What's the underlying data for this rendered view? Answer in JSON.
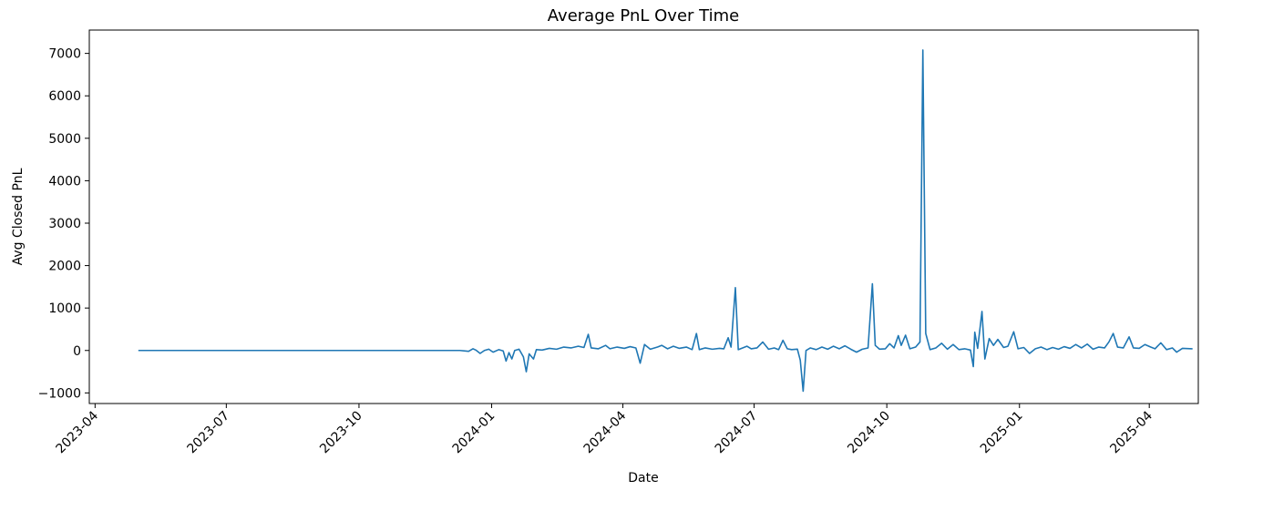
{
  "chart_data": {
    "type": "line",
    "title": "Average PnL Over Time",
    "xlabel": "Date",
    "ylabel": "Avg Closed PnL",
    "xlim": [
      "2023-03-28",
      "2025-05-05"
    ],
    "ylim": [
      -1250,
      7550
    ],
    "grid": false,
    "x_ticks": [
      "2023-04",
      "2023-07",
      "2023-10",
      "2024-01",
      "2024-04",
      "2024-07",
      "2024-10",
      "2025-01",
      "2025-04"
    ],
    "y_ticks": [
      -1000,
      0,
      1000,
      2000,
      3000,
      4000,
      5000,
      6000,
      7000
    ],
    "series": [
      {
        "color": "#1f77b4",
        "points": [
          [
            "2023-05-01",
            0
          ],
          [
            "2023-07-01",
            0
          ],
          [
            "2023-09-01",
            0
          ],
          [
            "2023-11-01",
            0
          ],
          [
            "2023-12-10",
            0
          ],
          [
            "2023-12-16",
            -20
          ],
          [
            "2023-12-19",
            40
          ],
          [
            "2023-12-21",
            10
          ],
          [
            "2023-12-24",
            -70
          ],
          [
            "2023-12-27",
            0
          ],
          [
            "2023-12-30",
            30
          ],
          [
            "2024-01-02",
            -40
          ],
          [
            "2024-01-06",
            20
          ],
          [
            "2024-01-09",
            -10
          ],
          [
            "2024-01-11",
            -250
          ],
          [
            "2024-01-13",
            -50
          ],
          [
            "2024-01-15",
            -200
          ],
          [
            "2024-01-17",
            0
          ],
          [
            "2024-01-20",
            30
          ],
          [
            "2024-01-23",
            -150
          ],
          [
            "2024-01-25",
            -500
          ],
          [
            "2024-01-27",
            -80
          ],
          [
            "2024-01-30",
            -200
          ],
          [
            "2024-02-01",
            20
          ],
          [
            "2024-02-05",
            10
          ],
          [
            "2024-02-10",
            50
          ],
          [
            "2024-02-15",
            30
          ],
          [
            "2024-02-20",
            80
          ],
          [
            "2024-02-25",
            60
          ],
          [
            "2024-03-01",
            100
          ],
          [
            "2024-03-05",
            70
          ],
          [
            "2024-03-08",
            380
          ],
          [
            "2024-03-10",
            60
          ],
          [
            "2024-03-15",
            40
          ],
          [
            "2024-03-20",
            120
          ],
          [
            "2024-03-23",
            40
          ],
          [
            "2024-03-28",
            80
          ],
          [
            "2024-04-02",
            50
          ],
          [
            "2024-04-06",
            90
          ],
          [
            "2024-04-10",
            60
          ],
          [
            "2024-04-13",
            -300
          ],
          [
            "2024-04-16",
            140
          ],
          [
            "2024-04-20",
            30
          ],
          [
            "2024-04-25",
            80
          ],
          [
            "2024-04-28",
            120
          ],
          [
            "2024-05-02",
            40
          ],
          [
            "2024-05-06",
            100
          ],
          [
            "2024-05-10",
            50
          ],
          [
            "2024-05-15",
            80
          ],
          [
            "2024-05-19",
            20
          ],
          [
            "2024-05-22",
            400
          ],
          [
            "2024-05-24",
            20
          ],
          [
            "2024-05-28",
            60
          ],
          [
            "2024-06-02",
            30
          ],
          [
            "2024-06-07",
            50
          ],
          [
            "2024-06-10",
            40
          ],
          [
            "2024-06-13",
            300
          ],
          [
            "2024-06-15",
            80
          ],
          [
            "2024-06-18",
            1480
          ],
          [
            "2024-06-20",
            20
          ],
          [
            "2024-06-23",
            60
          ],
          [
            "2024-06-26",
            100
          ],
          [
            "2024-06-29",
            40
          ],
          [
            "2024-07-03",
            60
          ],
          [
            "2024-07-07",
            200
          ],
          [
            "2024-07-11",
            30
          ],
          [
            "2024-07-15",
            60
          ],
          [
            "2024-07-18",
            20
          ],
          [
            "2024-07-21",
            240
          ],
          [
            "2024-07-24",
            40
          ],
          [
            "2024-07-27",
            20
          ],
          [
            "2024-07-31",
            30
          ],
          [
            "2024-08-02",
            -230
          ],
          [
            "2024-08-04",
            -960
          ],
          [
            "2024-08-06",
            0
          ],
          [
            "2024-08-09",
            60
          ],
          [
            "2024-08-13",
            20
          ],
          [
            "2024-08-17",
            80
          ],
          [
            "2024-08-21",
            30
          ],
          [
            "2024-08-25",
            100
          ],
          [
            "2024-08-29",
            40
          ],
          [
            "2024-09-02",
            110
          ],
          [
            "2024-09-06",
            30
          ],
          [
            "2024-09-10",
            -40
          ],
          [
            "2024-09-14",
            30
          ],
          [
            "2024-09-18",
            60
          ],
          [
            "2024-09-21",
            1570
          ],
          [
            "2024-09-23",
            120
          ],
          [
            "2024-09-26",
            30
          ],
          [
            "2024-09-30",
            40
          ],
          [
            "2024-10-03",
            160
          ],
          [
            "2024-10-06",
            60
          ],
          [
            "2024-10-09",
            350
          ],
          [
            "2024-10-11",
            120
          ],
          [
            "2024-10-14",
            360
          ],
          [
            "2024-10-17",
            40
          ],
          [
            "2024-10-21",
            80
          ],
          [
            "2024-10-24",
            200
          ],
          [
            "2024-10-26",
            7080
          ],
          [
            "2024-10-28",
            400
          ],
          [
            "2024-10-31",
            20
          ],
          [
            "2024-11-04",
            60
          ],
          [
            "2024-11-08",
            170
          ],
          [
            "2024-11-12",
            30
          ],
          [
            "2024-11-16",
            140
          ],
          [
            "2024-11-20",
            20
          ],
          [
            "2024-11-24",
            40
          ],
          [
            "2024-11-28",
            10
          ],
          [
            "2024-11-30",
            -380
          ],
          [
            "2024-12-01",
            430
          ],
          [
            "2024-12-03",
            50
          ],
          [
            "2024-12-06",
            920
          ],
          [
            "2024-12-08",
            -200
          ],
          [
            "2024-12-11",
            280
          ],
          [
            "2024-12-14",
            120
          ],
          [
            "2024-12-17",
            260
          ],
          [
            "2024-12-21",
            70
          ],
          [
            "2024-12-24",
            100
          ],
          [
            "2024-12-28",
            440
          ],
          [
            "2024-12-31",
            40
          ],
          [
            "2025-01-04",
            70
          ],
          [
            "2025-01-08",
            -70
          ],
          [
            "2025-01-12",
            40
          ],
          [
            "2025-01-16",
            80
          ],
          [
            "2025-01-20",
            20
          ],
          [
            "2025-01-24",
            70
          ],
          [
            "2025-01-28",
            30
          ],
          [
            "2025-02-01",
            90
          ],
          [
            "2025-02-05",
            50
          ],
          [
            "2025-02-09",
            140
          ],
          [
            "2025-02-13",
            60
          ],
          [
            "2025-02-17",
            150
          ],
          [
            "2025-02-21",
            30
          ],
          [
            "2025-02-25",
            80
          ],
          [
            "2025-03-01",
            60
          ],
          [
            "2025-03-04",
            200
          ],
          [
            "2025-03-07",
            400
          ],
          [
            "2025-03-10",
            80
          ],
          [
            "2025-03-14",
            60
          ],
          [
            "2025-03-18",
            320
          ],
          [
            "2025-03-21",
            60
          ],
          [
            "2025-03-25",
            50
          ],
          [
            "2025-03-29",
            140
          ],
          [
            "2025-04-02",
            80
          ],
          [
            "2025-04-05",
            40
          ],
          [
            "2025-04-09",
            180
          ],
          [
            "2025-04-13",
            20
          ],
          [
            "2025-04-17",
            60
          ],
          [
            "2025-04-20",
            -40
          ],
          [
            "2025-04-24",
            50
          ],
          [
            "2025-05-01",
            40
          ]
        ]
      }
    ]
  }
}
